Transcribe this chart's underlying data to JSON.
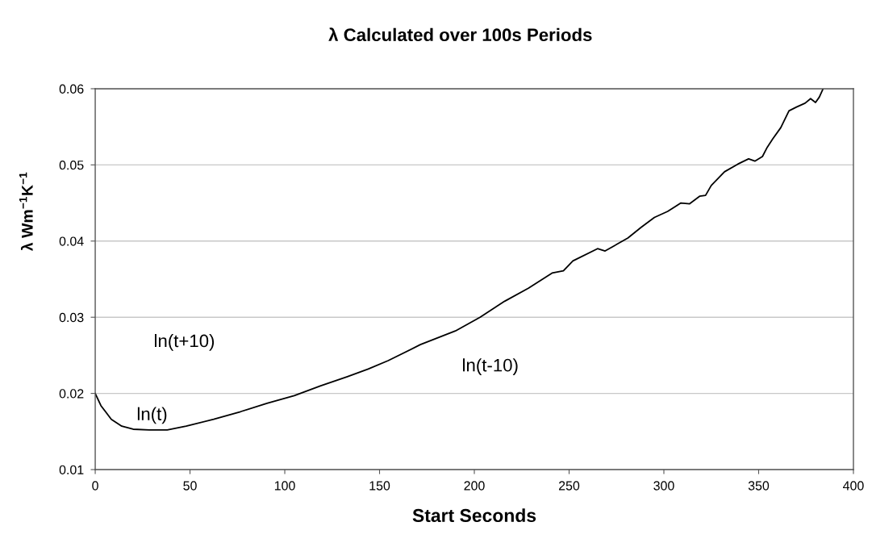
{
  "chart_data": {
    "type": "line",
    "title": "λ Calculated over 100s Periods",
    "xlabel": "Start Seconds",
    "ylabel": "λ Wm$^{−1}$K$^{−1}$",
    "x": [
      0,
      3,
      8.5,
      14,
      20,
      28.5,
      38,
      48,
      62.5,
      76.6,
      90.6,
      105,
      119,
      133,
      144,
      154.5,
      171.5,
      190,
      203,
      216,
      228.5,
      241,
      247,
      252,
      265,
      269,
      281,
      288,
      295,
      302,
      309,
      313.6,
      319,
      322,
      325,
      332,
      339,
      344.7,
      348,
      352,
      354.5,
      357.4,
      361.7,
      366,
      370,
      374.5,
      377.4,
      380,
      382,
      384
    ],
    "series": [
      {
        "color": "#000000",
        "values": [
          0.02,
          0.0184,
          0.0166,
          0.0157,
          0.0153,
          0.0152,
          0.0152,
          0.0157,
          0.0166,
          0.0176,
          0.0187,
          0.0197,
          0.021,
          0.0222,
          0.0232,
          0.0243,
          0.0264,
          0.0282,
          0.03,
          0.0321,
          0.0338,
          0.0358,
          0.0361,
          0.0374,
          0.039,
          0.0387,
          0.0404,
          0.0418,
          0.0431,
          0.0439,
          0.045,
          0.0449,
          0.0459,
          0.046,
          0.0473,
          0.0491,
          0.0501,
          0.0508,
          0.0505,
          0.0511,
          0.0523,
          0.0534,
          0.0549,
          0.0571,
          0.0576,
          0.0581,
          0.0587,
          0.0582,
          0.0589,
          0.06
        ]
      }
    ],
    "xlim": [
      0,
      400
    ],
    "xticks": [
      0,
      50,
      100,
      150,
      200,
      250,
      300,
      350,
      400
    ],
    "ylim": [
      0.01,
      0.06
    ],
    "yticks": [
      0.01,
      0.02,
      0.03,
      0.04,
      0.05,
      0.06
    ],
    "grid": "y",
    "legend": false,
    "marker": "none",
    "line_style": "solid",
    "annotations": [
      "ln(t+10)",
      "ln(t)",
      "ln(t-10)"
    ]
  }
}
